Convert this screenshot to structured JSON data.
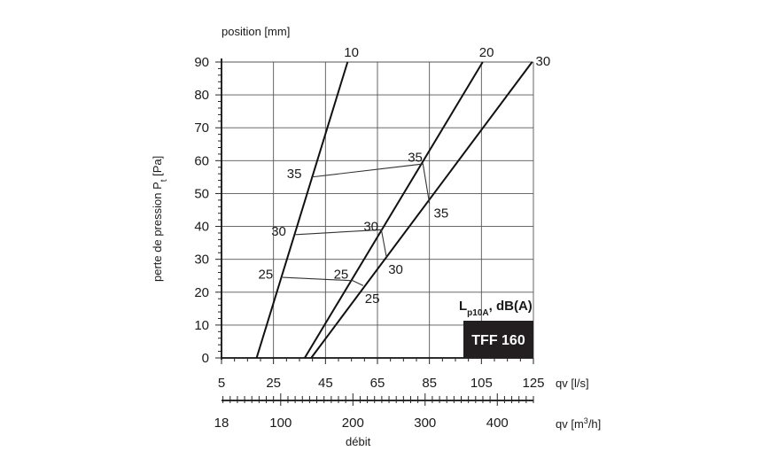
{
  "chart_data": {
    "type": "line",
    "title": "",
    "model_label": "TFF 160",
    "noise_label_main": "L",
    "noise_label_sub": "p10A",
    "noise_label_tail": ", dB(A)",
    "position_label": "position [mm]",
    "ylabel_main": "perte de pression P",
    "ylabel_sub": "t",
    "ylabel_tail": " [Pa]",
    "xlabel_ls": "qv [l/s]",
    "xlabel_m3h_main": "qv [m",
    "xlabel_m3h_sup": "3",
    "xlabel_m3h_tail": "/h]",
    "xlabel_bottom": "débit",
    "xlim": [
      5,
      125
    ],
    "ylim": [
      0,
      90
    ],
    "x_ticks_ls": [
      5,
      25,
      45,
      65,
      85,
      105,
      125
    ],
    "y_ticks": [
      0,
      10,
      20,
      30,
      40,
      50,
      60,
      70,
      80,
      90
    ],
    "x_ticks_m3h": [
      18,
      100,
      200,
      300,
      400
    ],
    "series": [
      {
        "name": "10",
        "x": [
          18.5,
          53.5
        ],
        "y": [
          0,
          90
        ]
      },
      {
        "name": "20",
        "x": [
          37.0,
          105.5
        ],
        "y": [
          0,
          90
        ]
      },
      {
        "name": "30",
        "x": [
          39.5,
          124.5
        ],
        "y": [
          0,
          90
        ]
      }
    ],
    "noise_curves": [
      {
        "label": "35",
        "points": [
          [
            39.5,
            55
          ],
          [
            82.5,
            59
          ],
          [
            85.0,
            47
          ]
        ],
        "label_positions": [
          [
            33,
            56
          ],
          [
            79.5,
            61
          ],
          [
            89.5,
            44
          ]
        ]
      },
      {
        "label": "30",
        "points": [
          [
            33.5,
            37.5
          ],
          [
            66.5,
            39
          ],
          [
            68.5,
            30.5
          ]
        ],
        "label_positions": [
          [
            27,
            38.5
          ],
          [
            62.5,
            40
          ],
          [
            72,
            27
          ]
        ]
      },
      {
        "label": "25",
        "points": [
          [
            28.5,
            24.5
          ],
          [
            55.5,
            23.5
          ],
          [
            59.5,
            22
          ]
        ],
        "label_positions": [
          [
            22,
            25.5
          ],
          [
            51,
            25.5
          ],
          [
            63,
            18
          ]
        ]
      }
    ]
  }
}
